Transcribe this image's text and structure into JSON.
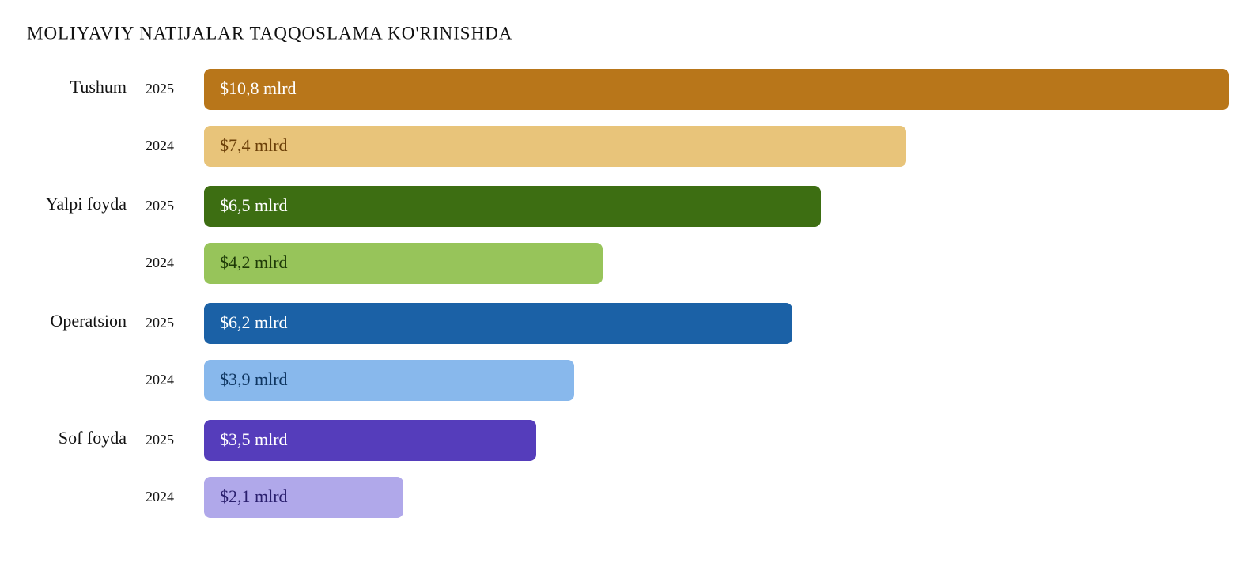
{
  "chart_data": {
    "type": "bar",
    "orientation": "horizontal",
    "title": "MOLIYAVIY NATIJALAR TAQQOSLAMA KO'RINISHDA",
    "categories": [
      "Tushum",
      "Yalpi foyda",
      "Operatsion",
      "Sof foyda"
    ],
    "series": [
      {
        "name": "2025",
        "values": [
          10.8,
          6.5,
          6.2,
          3.5
        ],
        "value_labels": [
          "$10,8 mlrd",
          "$6,5 mlrd",
          "$6,2 mlrd",
          "$3,5 mlrd"
        ],
        "colors": [
          "#b8761a",
          "#3d6e12",
          "#1b61a6",
          "#553dbb"
        ],
        "label_colors": [
          "#ffffff",
          "#ffffff",
          "#ffffff",
          "#ffffff"
        ]
      },
      {
        "name": "2024",
        "values": [
          7.4,
          4.2,
          3.9,
          2.1
        ],
        "value_labels": [
          "$7,4 mlrd",
          "$4,2 mlrd",
          "$3,9 mlrd",
          "$2,1 mlrd"
        ],
        "colors": [
          "#e8c47a",
          "#97c45a",
          "#88b8ec",
          "#b0a8ea"
        ],
        "label_colors": [
          "#6b3f08",
          "#1e3a08",
          "#0e3560",
          "#2a1f6e"
        ]
      }
    ]
  }
}
